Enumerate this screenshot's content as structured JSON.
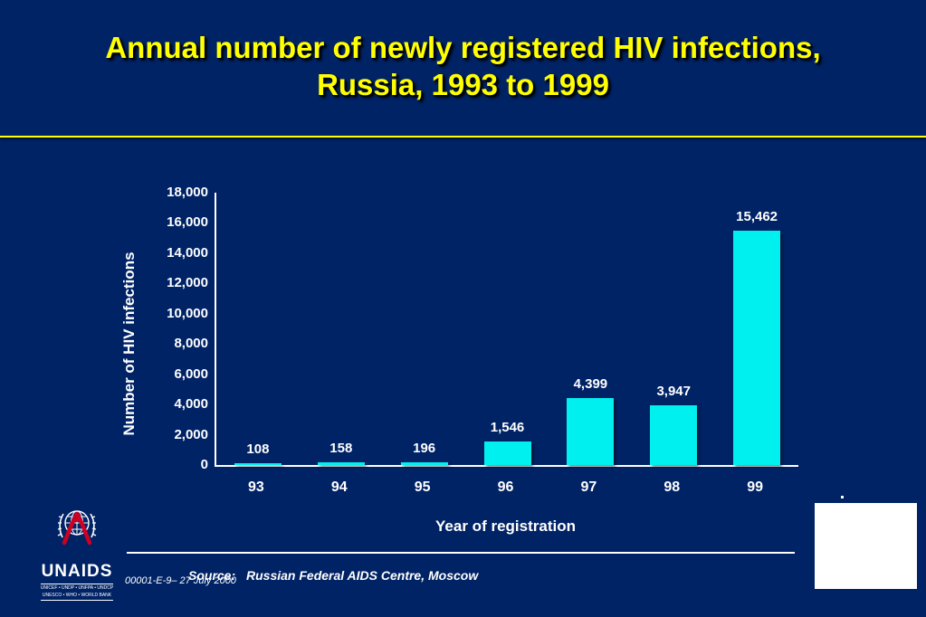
{
  "slide": {
    "title_line1": "Annual number of newly registered HIV infections,",
    "title_line2": "Russia, 1993 to 1999",
    "footer_code": "00001-E-9– 27 July 2000",
    "source_label": "Source:",
    "source_text": "Russian Federal AIDS Centre, Moscow"
  },
  "logo": {
    "name": "UNAIDS",
    "cosponsors_line1": "UNICEF • UNDP • UNFPA • UNDCP",
    "cosponsors_line2": "UNESCO • WHO • WORLD BANK"
  },
  "colors": {
    "background": "#002366",
    "title": "#ffff00",
    "bar": "#00efef",
    "text": "#ffffff",
    "ribbon_red": "#cc0022"
  },
  "chart_data": {
    "type": "bar",
    "categories": [
      "93",
      "94",
      "95",
      "96",
      "97",
      "98",
      "99"
    ],
    "values": [
      108,
      158,
      196,
      1546,
      4399,
      3947,
      15462
    ],
    "value_labels": [
      "108",
      "158",
      "196",
      "1,546",
      "4,399",
      "3,947",
      "15,462"
    ],
    "title": "",
    "xlabel": "Year of registration",
    "ylabel": "Number of HIV infections",
    "ylim": [
      0,
      18000
    ],
    "ytick_step": 2000,
    "grid": false,
    "legend": "none"
  }
}
